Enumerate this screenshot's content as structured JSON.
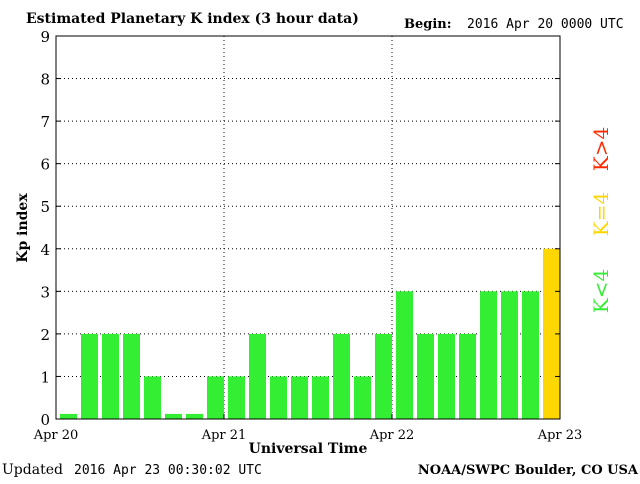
{
  "header": {
    "title": "Estimated Planetary K index (3 hour data)",
    "begin_label": "Begin:",
    "begin_value": "2016 Apr 20 0000 UTC"
  },
  "footer": {
    "updated_label": "Updated",
    "updated_value": "2016 Apr 23 00:30:02 UTC",
    "source": "NOAA/SWPC Boulder, CO USA"
  },
  "legend": {
    "items": [
      {
        "label": "K>4",
        "color": "#ff2a00"
      },
      {
        "label": "K=4",
        "color": "#ffd700"
      },
      {
        "label": "K<4",
        "color": "#33ee33"
      }
    ]
  },
  "chart_data": {
    "type": "bar",
    "title": "Estimated Planetary K index (3 hour data)",
    "xlabel": "Universal Time",
    "ylabel": "Kp index",
    "ylim": [
      0,
      9
    ],
    "yticks": [
      0,
      1,
      2,
      3,
      4,
      5,
      6,
      7,
      8,
      9
    ],
    "xticks": [
      "Apr 20",
      "Apr 21",
      "Apr 22",
      "Apr 23"
    ],
    "grid": true,
    "categories": [
      "Apr 20 00",
      "Apr 20 03",
      "Apr 20 06",
      "Apr 20 09",
      "Apr 20 12",
      "Apr 20 15",
      "Apr 20 18",
      "Apr 20 21",
      "Apr 21 00",
      "Apr 21 03",
      "Apr 21 06",
      "Apr 21 09",
      "Apr 21 12",
      "Apr 21 15",
      "Apr 21 18",
      "Apr 21 21",
      "Apr 22 00",
      "Apr 22 03",
      "Apr 22 06",
      "Apr 22 09",
      "Apr 22 12",
      "Apr 22 15",
      "Apr 22 18",
      "Apr 22 21"
    ],
    "values": [
      0,
      2,
      2,
      2,
      1,
      0,
      0,
      1,
      1,
      2,
      1,
      1,
      1,
      2,
      1,
      2,
      3,
      2,
      2,
      2,
      3,
      3,
      3,
      4
    ],
    "colors": {
      "below": "#33ee33",
      "equal": "#ffd700",
      "above": "#ff2a00"
    }
  }
}
